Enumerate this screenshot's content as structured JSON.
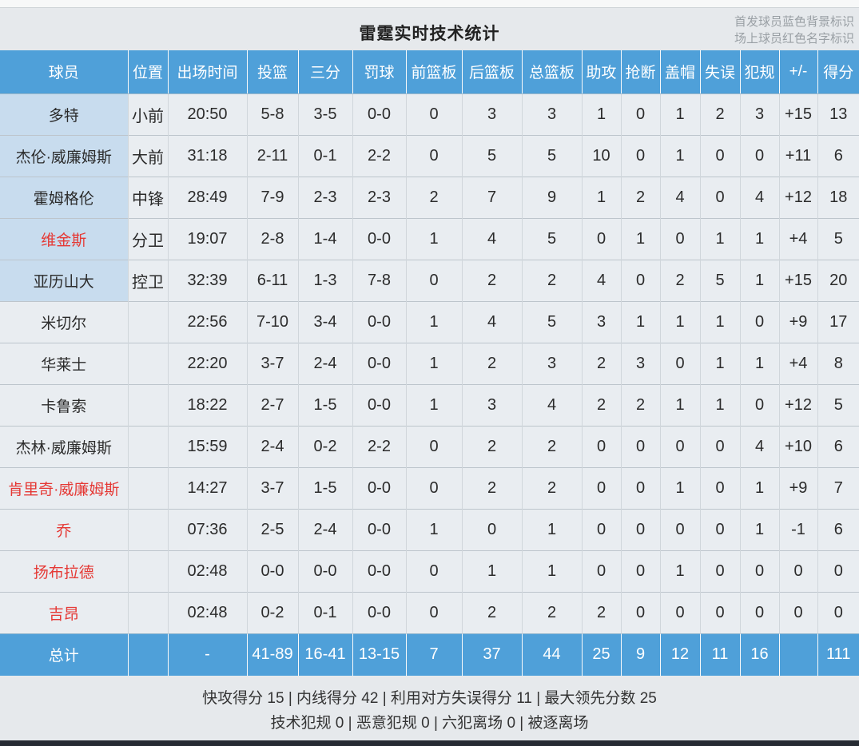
{
  "page": {
    "title": "雷霆实时技术统计",
    "legend": [
      "首发球员蓝色背景标识",
      "场上球员红色名字标识"
    ]
  },
  "colors": {
    "header_blue": "#4fa0d9",
    "starter_row_bg": "#c8dcee",
    "on_court_name_red": "#e53935",
    "row_bg": "#e9edf1"
  },
  "table": {
    "columns": [
      "球员",
      "位置",
      "出场时间",
      "投篮",
      "三分",
      "罚球",
      "前篮板",
      "后篮板",
      "总篮板",
      "助攻",
      "抢断",
      "盖帽",
      "失误",
      "犯规",
      "+/-",
      "得分"
    ],
    "players": [
      {
        "name": "多特",
        "pos": "小前",
        "time": "20:50",
        "fg": "5-8",
        "tp": "3-5",
        "ft": "0-0",
        "orb": "0",
        "drb": "3",
        "trb": "3",
        "ast": "1",
        "stl": "0",
        "blk": "1",
        "tov": "2",
        "pf": "3",
        "pm": "+15",
        "pts": "13",
        "starter": true,
        "on_court": false
      },
      {
        "name": "杰伦·威廉姆斯",
        "pos": "大前",
        "time": "31:18",
        "fg": "2-11",
        "tp": "0-1",
        "ft": "2-2",
        "orb": "0",
        "drb": "5",
        "trb": "5",
        "ast": "10",
        "stl": "0",
        "blk": "1",
        "tov": "0",
        "pf": "0",
        "pm": "+11",
        "pts": "6",
        "starter": true,
        "on_court": false
      },
      {
        "name": "霍姆格伦",
        "pos": "中锋",
        "time": "28:49",
        "fg": "7-9",
        "tp": "2-3",
        "ft": "2-3",
        "orb": "2",
        "drb": "7",
        "trb": "9",
        "ast": "1",
        "stl": "2",
        "blk": "4",
        "tov": "0",
        "pf": "4",
        "pm": "+12",
        "pts": "18",
        "starter": true,
        "on_court": false
      },
      {
        "name": "维金斯",
        "pos": "分卫",
        "time": "19:07",
        "fg": "2-8",
        "tp": "1-4",
        "ft": "0-0",
        "orb": "1",
        "drb": "4",
        "trb": "5",
        "ast": "0",
        "stl": "1",
        "blk": "0",
        "tov": "1",
        "pf": "1",
        "pm": "+4",
        "pts": "5",
        "starter": true,
        "on_court": true
      },
      {
        "name": "亚历山大",
        "pos": "控卫",
        "time": "32:39",
        "fg": "6-11",
        "tp": "1-3",
        "ft": "7-8",
        "orb": "0",
        "drb": "2",
        "trb": "2",
        "ast": "4",
        "stl": "0",
        "blk": "2",
        "tov": "5",
        "pf": "1",
        "pm": "+15",
        "pts": "20",
        "starter": true,
        "on_court": false
      },
      {
        "name": "米切尔",
        "pos": "",
        "time": "22:56",
        "fg": "7-10",
        "tp": "3-4",
        "ft": "0-0",
        "orb": "1",
        "drb": "4",
        "trb": "5",
        "ast": "3",
        "stl": "1",
        "blk": "1",
        "tov": "1",
        "pf": "0",
        "pm": "+9",
        "pts": "17",
        "starter": false,
        "on_court": false
      },
      {
        "name": "华莱士",
        "pos": "",
        "time": "22:20",
        "fg": "3-7",
        "tp": "2-4",
        "ft": "0-0",
        "orb": "1",
        "drb": "2",
        "trb": "3",
        "ast": "2",
        "stl": "3",
        "blk": "0",
        "tov": "1",
        "pf": "1",
        "pm": "+4",
        "pts": "8",
        "starter": false,
        "on_court": false
      },
      {
        "name": "卡鲁索",
        "pos": "",
        "time": "18:22",
        "fg": "2-7",
        "tp": "1-5",
        "ft": "0-0",
        "orb": "1",
        "drb": "3",
        "trb": "4",
        "ast": "2",
        "stl": "2",
        "blk": "1",
        "tov": "1",
        "pf": "0",
        "pm": "+12",
        "pts": "5",
        "starter": false,
        "on_court": false
      },
      {
        "name": "杰林·威廉姆斯",
        "pos": "",
        "time": "15:59",
        "fg": "2-4",
        "tp": "0-2",
        "ft": "2-2",
        "orb": "0",
        "drb": "2",
        "trb": "2",
        "ast": "0",
        "stl": "0",
        "blk": "0",
        "tov": "0",
        "pf": "4",
        "pm": "+10",
        "pts": "6",
        "starter": false,
        "on_court": false
      },
      {
        "name": "肯里奇·威廉姆斯",
        "pos": "",
        "time": "14:27",
        "fg": "3-7",
        "tp": "1-5",
        "ft": "0-0",
        "orb": "0",
        "drb": "2",
        "trb": "2",
        "ast": "0",
        "stl": "0",
        "blk": "1",
        "tov": "0",
        "pf": "1",
        "pm": "+9",
        "pts": "7",
        "starter": false,
        "on_court": true
      },
      {
        "name": "乔",
        "pos": "",
        "time": "07:36",
        "fg": "2-5",
        "tp": "2-4",
        "ft": "0-0",
        "orb": "1",
        "drb": "0",
        "trb": "1",
        "ast": "0",
        "stl": "0",
        "blk": "0",
        "tov": "0",
        "pf": "1",
        "pm": "-1",
        "pts": "6",
        "starter": false,
        "on_court": true
      },
      {
        "name": "扬布拉德",
        "pos": "",
        "time": "02:48",
        "fg": "0-0",
        "tp": "0-0",
        "ft": "0-0",
        "orb": "0",
        "drb": "1",
        "trb": "1",
        "ast": "0",
        "stl": "0",
        "blk": "1",
        "tov": "0",
        "pf": "0",
        "pm": "0",
        "pts": "0",
        "starter": false,
        "on_court": true
      },
      {
        "name": "吉昂",
        "pos": "",
        "time": "02:48",
        "fg": "0-2",
        "tp": "0-1",
        "ft": "0-0",
        "orb": "0",
        "drb": "2",
        "trb": "2",
        "ast": "2",
        "stl": "0",
        "blk": "0",
        "tov": "0",
        "pf": "0",
        "pm": "0",
        "pts": "0",
        "starter": false,
        "on_court": true
      }
    ],
    "total": {
      "name": "总计",
      "pos": "",
      "time": "-",
      "fg": "41-89",
      "tp": "16-41",
      "ft": "13-15",
      "orb": "7",
      "drb": "37",
      "trb": "44",
      "ast": "25",
      "stl": "9",
      "blk": "12",
      "tov": "11",
      "pf": "16",
      "pm": "",
      "pts": "111"
    }
  },
  "footer": {
    "lines": [
      "快攻得分 15 | 内线得分 42 | 利用对方失误得分 11 | 最大领先分数 25",
      "技术犯规 0 | 恶意犯规 0 | 六犯离场 0 | 被逐离场"
    ]
  }
}
